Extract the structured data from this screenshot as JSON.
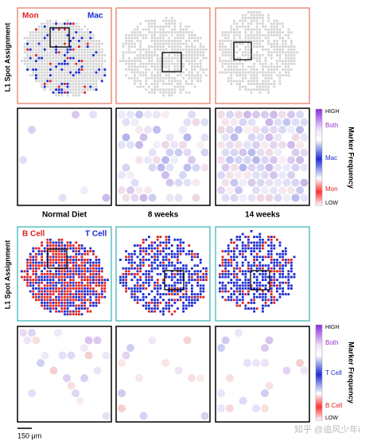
{
  "top": {
    "label": "L1 Spot Assignment",
    "legend_left": "Mon",
    "legend_right": "Mac"
  },
  "top_colorbar": {
    "title": "Marker Frequency",
    "high": "HIGH",
    "both": "Both",
    "middle": "Mac",
    "lower": "Mon",
    "low": "LOW"
  },
  "columns": [
    "Normal Diet",
    "8 weeks",
    "14 weeks"
  ],
  "bottom": {
    "label": "L1 Spot Assignment",
    "legend_left": "B Cell",
    "legend_right": "T Cell"
  },
  "bottom_colorbar": {
    "title": "Marker Frequency",
    "high": "HIGH",
    "both": "Both",
    "middle": "T Cell",
    "lower": "B Cell",
    "low": "LOW"
  },
  "scale_bar": "150 μm",
  "watermark": "知乎 @追风少年i"
}
